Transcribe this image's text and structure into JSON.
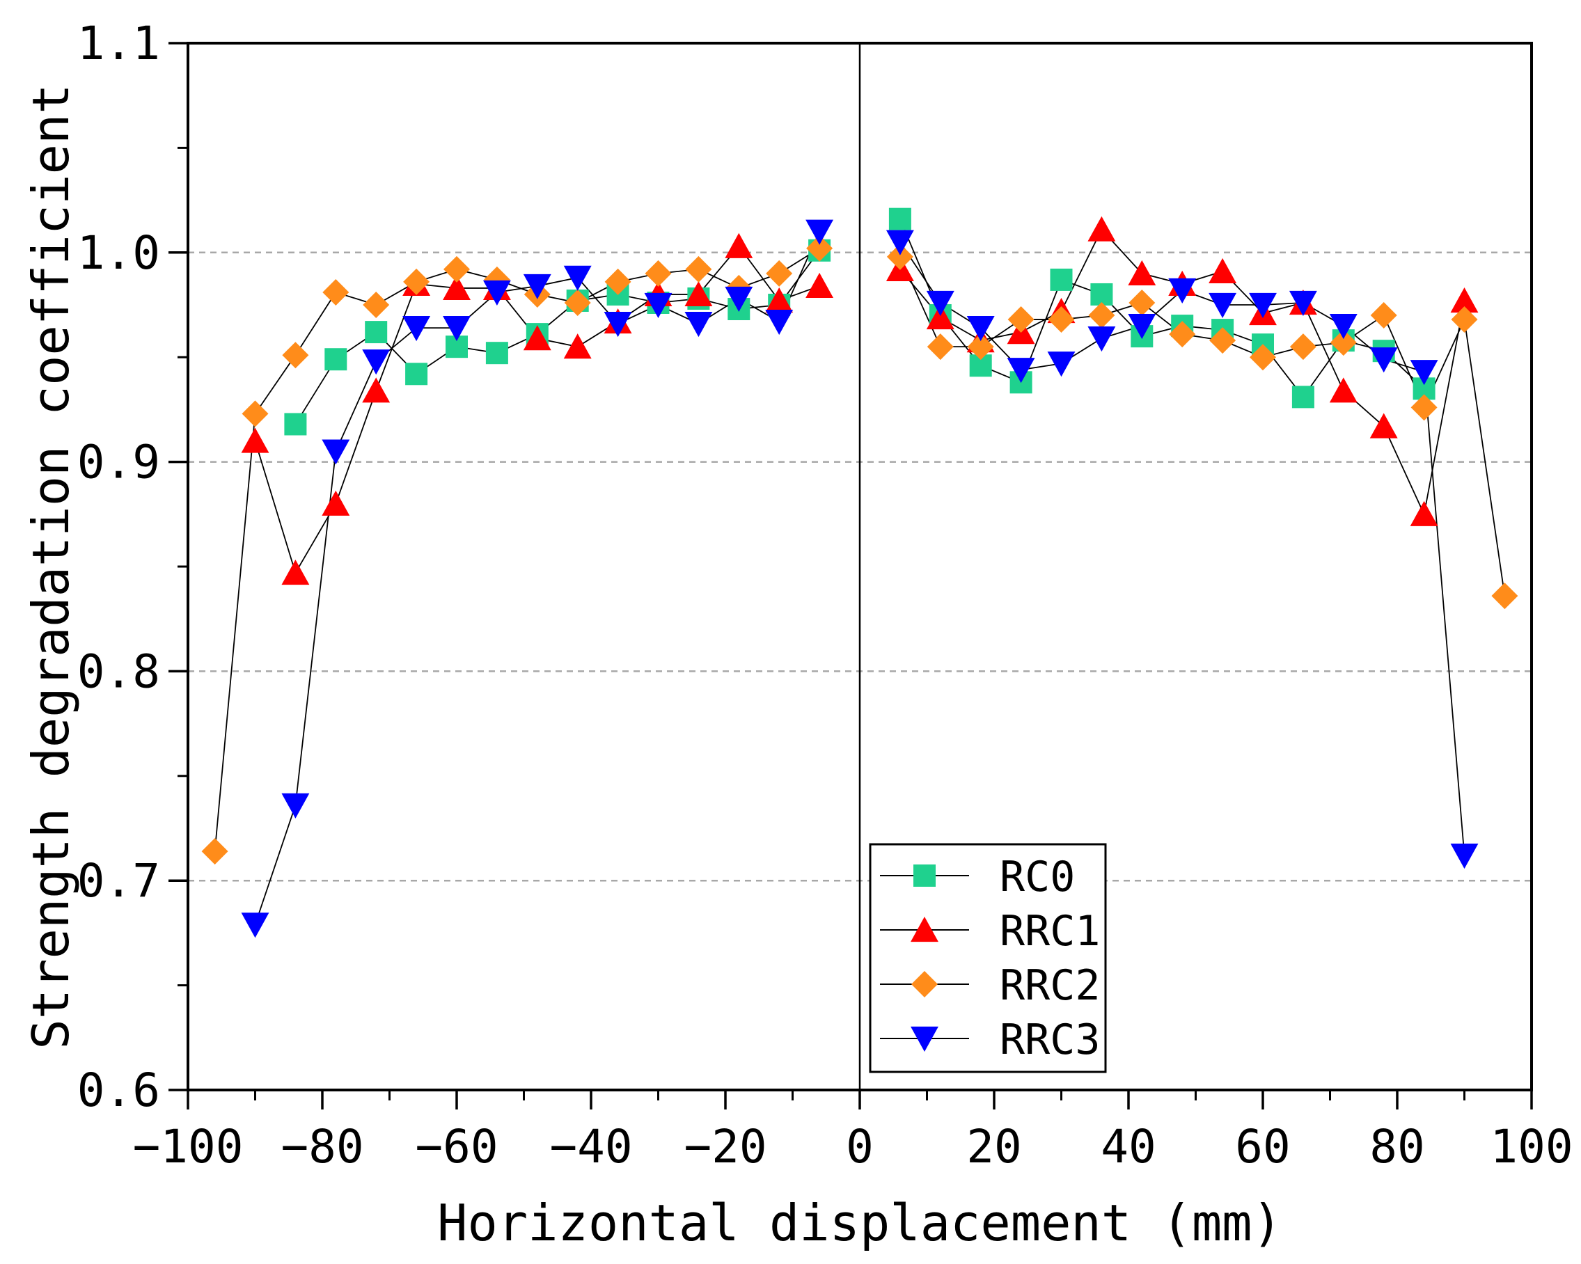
{
  "chart_data": {
    "type": "scatter",
    "title": "",
    "xlabel": "Horizontal displacement (mm)",
    "ylabel": "Strength degradation coefficient",
    "xlim": [
      -100,
      100
    ],
    "ylim": [
      0.6,
      1.1
    ],
    "x_ticks": [
      -100,
      -80,
      -60,
      -40,
      -20,
      0,
      20,
      40,
      60,
      80,
      100
    ],
    "x_tick_labels": [
      "−100",
      "−80",
      "−60",
      "−40",
      "−20",
      "0",
      "20",
      "40",
      "60",
      "80",
      "100"
    ],
    "y_ticks": [
      0.6,
      0.7,
      0.8,
      0.9,
      1.0,
      1.1
    ],
    "y_tick_labels": [
      "0.6",
      "0.7",
      "0.8",
      "0.9",
      "1.0",
      "1.1"
    ],
    "grid_lines_y": [
      0.7,
      0.8,
      0.9,
      1.0
    ],
    "vertical_reference_line_x": 0,
    "legend_position": "bottom-center",
    "series": [
      {
        "name": "RC0",
        "marker": "square",
        "color": "#1fd18e",
        "negative": [
          [
            -84,
            0.918
          ],
          [
            -78,
            0.949
          ],
          [
            -72,
            0.962
          ],
          [
            -66,
            0.942
          ],
          [
            -60,
            0.955
          ],
          [
            -54,
            0.952
          ],
          [
            -48,
            0.961
          ],
          [
            -42,
            0.977
          ],
          [
            -36,
            0.98
          ],
          [
            -30,
            0.976
          ],
          [
            -24,
            0.978
          ],
          [
            -18,
            0.973
          ],
          [
            -12,
            0.975
          ],
          [
            -6,
            1.001
          ]
        ],
        "positive": [
          [
            6,
            1.016
          ],
          [
            12,
            0.97
          ],
          [
            18,
            0.946
          ],
          [
            24,
            0.938
          ],
          [
            30,
            0.987
          ],
          [
            36,
            0.98
          ],
          [
            42,
            0.96
          ],
          [
            48,
            0.965
          ],
          [
            54,
            0.963
          ],
          [
            60,
            0.956
          ],
          [
            66,
            0.931
          ],
          [
            72,
            0.958
          ],
          [
            78,
            0.953
          ],
          [
            84,
            0.935
          ]
        ]
      },
      {
        "name": "RRC1",
        "marker": "triangle-up",
        "color": "#ff0000",
        "negative": [
          [
            -90,
            0.91
          ],
          [
            -84,
            0.847
          ],
          [
            -78,
            0.88
          ],
          [
            -72,
            0.934
          ],
          [
            -66,
            0.985
          ],
          [
            -60,
            0.983
          ],
          [
            -54,
            0.983
          ],
          [
            -48,
            0.959
          ],
          [
            -42,
            0.955
          ],
          [
            -36,
            0.967
          ],
          [
            -30,
            0.98
          ],
          [
            -24,
            0.98
          ],
          [
            -18,
            1.003
          ],
          [
            -12,
            0.977
          ],
          [
            -6,
            0.984
          ]
        ],
        "positive": [
          [
            6,
            0.992
          ],
          [
            12,
            0.969
          ],
          [
            18,
            0.958
          ],
          [
            24,
            0.962
          ],
          [
            30,
            0.972
          ],
          [
            36,
            1.011
          ],
          [
            42,
            0.99
          ],
          [
            48,
            0.985
          ],
          [
            54,
            0.991
          ],
          [
            60,
            0.971
          ],
          [
            66,
            0.976
          ],
          [
            72,
            0.934
          ],
          [
            78,
            0.917
          ],
          [
            84,
            0.875
          ],
          [
            90,
            0.977
          ]
        ]
      },
      {
        "name": "RRC2",
        "marker": "diamond",
        "color": "#ff8c1a",
        "negative": [
          [
            -96,
            0.714
          ],
          [
            -90,
            0.923
          ],
          [
            -84,
            0.951
          ],
          [
            -78,
            0.981
          ],
          [
            -72,
            0.975
          ],
          [
            -66,
            0.986
          ],
          [
            -60,
            0.992
          ],
          [
            -54,
            0.987
          ],
          [
            -48,
            0.98
          ],
          [
            -42,
            0.976
          ],
          [
            -36,
            0.986
          ],
          [
            -30,
            0.99
          ],
          [
            -24,
            0.992
          ],
          [
            -18,
            0.983
          ],
          [
            -12,
            0.99
          ],
          [
            -6,
            1.002
          ]
        ],
        "positive": [
          [
            6,
            0.998
          ],
          [
            12,
            0.955
          ],
          [
            18,
            0.955
          ],
          [
            24,
            0.968
          ],
          [
            30,
            0.968
          ],
          [
            36,
            0.97
          ],
          [
            42,
            0.976
          ],
          [
            48,
            0.961
          ],
          [
            54,
            0.958
          ],
          [
            60,
            0.95
          ],
          [
            66,
            0.955
          ],
          [
            72,
            0.957
          ],
          [
            78,
            0.97
          ],
          [
            84,
            0.926
          ],
          [
            90,
            0.968
          ],
          [
            96,
            0.836
          ]
        ]
      },
      {
        "name": "RRC3",
        "marker": "triangle-down",
        "color": "#0000ff",
        "negative": [
          [
            -90,
            0.679
          ],
          [
            -84,
            0.736
          ],
          [
            -78,
            0.905
          ],
          [
            -72,
            0.948
          ],
          [
            -66,
            0.964
          ],
          [
            -60,
            0.964
          ],
          [
            -54,
            0.981
          ],
          [
            -48,
            0.984
          ],
          [
            -42,
            0.988
          ],
          [
            -36,
            0.966
          ],
          [
            -30,
            0.975
          ],
          [
            -24,
            0.966
          ],
          [
            -18,
            0.978
          ],
          [
            -12,
            0.967
          ],
          [
            -6,
            1.01
          ]
        ],
        "positive": [
          [
            6,
            1.005
          ],
          [
            12,
            0.976
          ],
          [
            18,
            0.964
          ],
          [
            24,
            0.944
          ],
          [
            30,
            0.947
          ],
          [
            36,
            0.959
          ],
          [
            42,
            0.965
          ],
          [
            48,
            0.982
          ],
          [
            54,
            0.975
          ],
          [
            60,
            0.975
          ],
          [
            66,
            0.976
          ],
          [
            72,
            0.965
          ],
          [
            78,
            0.949
          ],
          [
            84,
            0.943
          ],
          [
            90,
            0.712
          ]
        ]
      }
    ]
  }
}
